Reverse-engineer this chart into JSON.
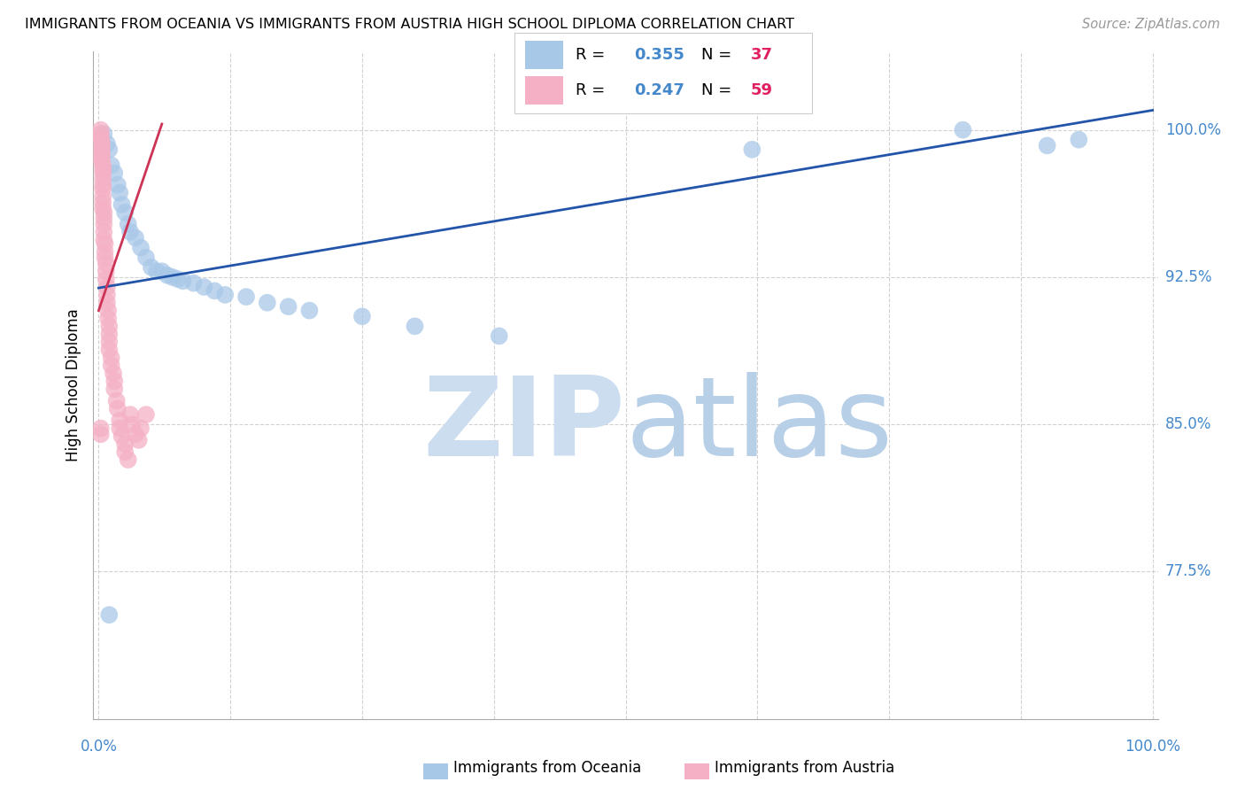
{
  "title": "IMMIGRANTS FROM OCEANIA VS IMMIGRANTS FROM AUSTRIA HIGH SCHOOL DIPLOMA CORRELATION CHART",
  "source": "Source: ZipAtlas.com",
  "ylabel": "High School Diploma",
  "ytick_labels": [
    "77.5%",
    "85.0%",
    "92.5%",
    "100.0%"
  ],
  "ytick_values": [
    0.775,
    0.85,
    0.925,
    1.0
  ],
  "xlim": [
    -0.005,
    1.005
  ],
  "ylim": [
    0.7,
    1.04
  ],
  "oceania_color": "#a8c8e8",
  "austria_color": "#f5b0c5",
  "oceania_line_color": "#2255aa",
  "austria_line_color": "#cc3355",
  "oceania_x": [
    0.005,
    0.008,
    0.01,
    0.012,
    0.015,
    0.018,
    0.02,
    0.022,
    0.025,
    0.028,
    0.03,
    0.035,
    0.04,
    0.045,
    0.05,
    0.055,
    0.06,
    0.065,
    0.07,
    0.075,
    0.08,
    0.09,
    0.1,
    0.11,
    0.12,
    0.14,
    0.16,
    0.18,
    0.2,
    0.25,
    0.3,
    0.38,
    0.62,
    0.82,
    0.9,
    0.93,
    0.01
  ],
  "oceania_y": [
    0.998,
    0.993,
    0.99,
    0.982,
    0.978,
    0.972,
    0.968,
    0.962,
    0.958,
    0.952,
    0.948,
    0.945,
    0.94,
    0.935,
    0.93,
    0.928,
    0.928,
    0.926,
    0.925,
    0.924,
    0.923,
    0.922,
    0.92,
    0.918,
    0.916,
    0.915,
    0.912,
    0.91,
    0.908,
    0.905,
    0.9,
    0.895,
    0.99,
    1.0,
    0.992,
    0.995,
    0.753
  ],
  "austria_x": [
    0.002,
    0.002,
    0.002,
    0.003,
    0.003,
    0.003,
    0.003,
    0.003,
    0.003,
    0.004,
    0.004,
    0.004,
    0.004,
    0.004,
    0.004,
    0.004,
    0.004,
    0.004,
    0.005,
    0.005,
    0.005,
    0.005,
    0.005,
    0.006,
    0.006,
    0.006,
    0.007,
    0.007,
    0.007,
    0.008,
    0.008,
    0.008,
    0.009,
    0.009,
    0.01,
    0.01,
    0.01,
    0.01,
    0.012,
    0.012,
    0.014,
    0.015,
    0.015,
    0.017,
    0.018,
    0.02,
    0.02,
    0.022,
    0.025,
    0.025,
    0.028,
    0.03,
    0.032,
    0.035,
    0.038,
    0.04,
    0.045,
    0.002,
    0.002
  ],
  "austria_y": [
    1.0,
    0.998,
    0.996,
    0.994,
    0.992,
    0.99,
    0.988,
    0.986,
    0.984,
    0.982,
    0.98,
    0.978,
    0.975,
    0.972,
    0.97,
    0.966,
    0.963,
    0.96,
    0.958,
    0.955,
    0.952,
    0.948,
    0.944,
    0.942,
    0.938,
    0.935,
    0.932,
    0.928,
    0.924,
    0.92,
    0.916,
    0.912,
    0.908,
    0.904,
    0.9,
    0.896,
    0.892,
    0.888,
    0.884,
    0.88,
    0.876,
    0.872,
    0.868,
    0.862,
    0.858,
    0.852,
    0.848,
    0.844,
    0.84,
    0.836,
    0.832,
    0.855,
    0.85,
    0.845,
    0.842,
    0.848,
    0.855,
    0.848,
    0.845
  ],
  "oceania_line_x": [
    0.0,
    1.0
  ],
  "oceania_line_y": [
    0.9195,
    1.01
  ],
  "austria_line_x": [
    0.0,
    0.06
  ],
  "austria_line_y": [
    0.908,
    1.003
  ],
  "legend_r_blue": "0.355",
  "legend_n_blue": "37",
  "legend_r_pink": "0.247",
  "legend_n_pink": "59",
  "bottom_label1": "Immigrants from Oceania",
  "bottom_label2": "Immigrants from Austria",
  "watermark_zip": "ZIP",
  "watermark_atlas": "atlas",
  "watermark_zip_color": "#ccddf0",
  "watermark_atlas_color": "#b8cfe8"
}
